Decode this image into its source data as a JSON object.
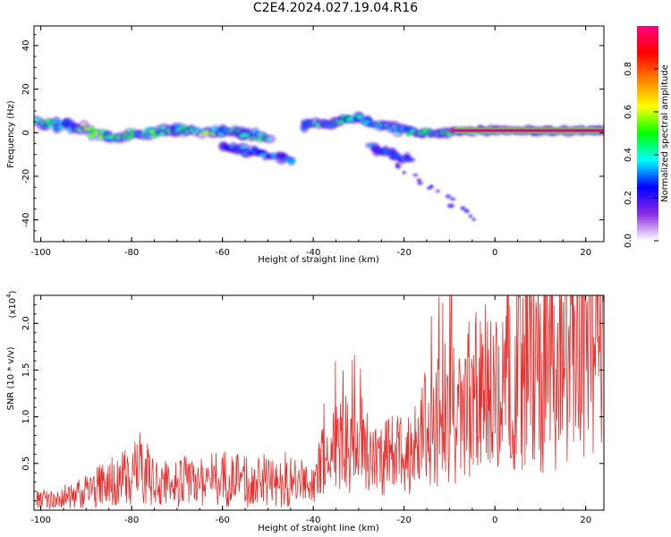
{
  "figure": {
    "title": "C2E4.2024.027.19.04.R16"
  },
  "chart_data": [
    {
      "type": "heatmap",
      "xlabel": "Height of straight line (km)",
      "ylabel": "Frequency (Hz)",
      "xlim": [
        -101.5,
        24
      ],
      "ylim": [
        -50,
        49
      ],
      "xticks": [
        -100,
        -80,
        -60,
        -40,
        -20,
        0,
        20
      ],
      "yticks": [
        -40,
        -20,
        0,
        20,
        40
      ],
      "grid": false,
      "colorbar": {
        "label": "Normalized spectral amplitude",
        "range": [
          0.0,
          1.0
        ],
        "ticks": [
          0.0,
          0.2,
          0.4,
          0.6,
          0.8
        ],
        "colormap": [
          "#ffffff",
          "#8a2be2",
          "#0000ff",
          "#00ffff",
          "#00ff00",
          "#ffff00",
          "#ff8000",
          "#ff0000",
          "#ff0080"
        ]
      },
      "bands": [
        {
          "x": [
            -101,
            -92
          ],
          "y_start": 4,
          "y_end": 3,
          "amplitude": 0.45,
          "width": 6
        },
        {
          "x": [
            -92,
            -85
          ],
          "y_start": 3,
          "y_end": -2,
          "amplitude": 0.55,
          "width": 6
        },
        {
          "x": [
            -85,
            -70
          ],
          "y_start": -2,
          "y_end": 1,
          "amplitude": 0.5,
          "width": 6
        },
        {
          "x": [
            -70,
            -60
          ],
          "y_start": 1,
          "y_end": 0,
          "amplitude": 0.55,
          "width": 5
        },
        {
          "x": [
            -60,
            -50
          ],
          "y_start": 1,
          "y_end": -2,
          "amplitude": 0.45,
          "width": 5
        },
        {
          "x": [
            -60,
            -45
          ],
          "y_start": -6,
          "y_end": -12,
          "amplitude": 0.35,
          "width": 4
        },
        {
          "x": [
            -42,
            -28
          ],
          "y_start": 3,
          "y_end": 7,
          "amplitude": 0.45,
          "width": 6
        },
        {
          "x": [
            -28,
            -16
          ],
          "y_start": 5,
          "y_end": -1,
          "amplitude": 0.45,
          "width": 5
        },
        {
          "x": [
            -27,
            -19
          ],
          "y_start": -7,
          "y_end": -12,
          "amplitude": 0.35,
          "width": 4
        },
        {
          "x": [
            -16,
            -9
          ],
          "y_start": 0,
          "y_end": 0,
          "amplitude": 0.5,
          "width": 3
        },
        {
          "x": [
            -9,
            24
          ],
          "y_start": 1,
          "y_end": 1,
          "amplitude": 0.95,
          "width": 2
        }
      ]
    },
    {
      "type": "line",
      "xlabel": "Height of straight line (km)",
      "ylabel": "SNR (10 * v/v)",
      "y_multiplier": "(x10",
      "y_multiplier_exp": "4",
      "xlim": [
        -101.5,
        24
      ],
      "ylim": [
        0.0,
        2.3
      ],
      "xticks": [
        -100,
        -80,
        -60,
        -40,
        -20,
        0,
        20
      ],
      "yticks": [
        0.5,
        1.0,
        1.5,
        2.0
      ],
      "grid": false,
      "series": [
        {
          "color": "#e8312f",
          "x": [
            -101,
            -95,
            -90,
            -85,
            -80,
            -78,
            -75,
            -70,
            -65,
            -60,
            -55,
            -50,
            -45,
            -40,
            -38,
            -35,
            -30,
            -27,
            -25,
            -22,
            -20,
            -17,
            -15,
            -12,
            -10,
            -8,
            -5,
            -2,
            0,
            3,
            5,
            8,
            10,
            12,
            15,
            18,
            20,
            22,
            24
          ],
          "y": [
            0.1,
            0.12,
            0.2,
            0.3,
            0.35,
            0.45,
            0.3,
            0.3,
            0.32,
            0.35,
            0.3,
            0.3,
            0.28,
            0.3,
            0.5,
            0.7,
            0.75,
            0.6,
            0.55,
            0.6,
            0.6,
            0.75,
            0.9,
            1.0,
            1.1,
            1.1,
            1.2,
            1.3,
            1.4,
            1.5,
            1.45,
            1.55,
            1.5,
            1.65,
            1.7,
            1.65,
            1.8,
            1.75,
            1.8
          ]
        }
      ]
    }
  ]
}
